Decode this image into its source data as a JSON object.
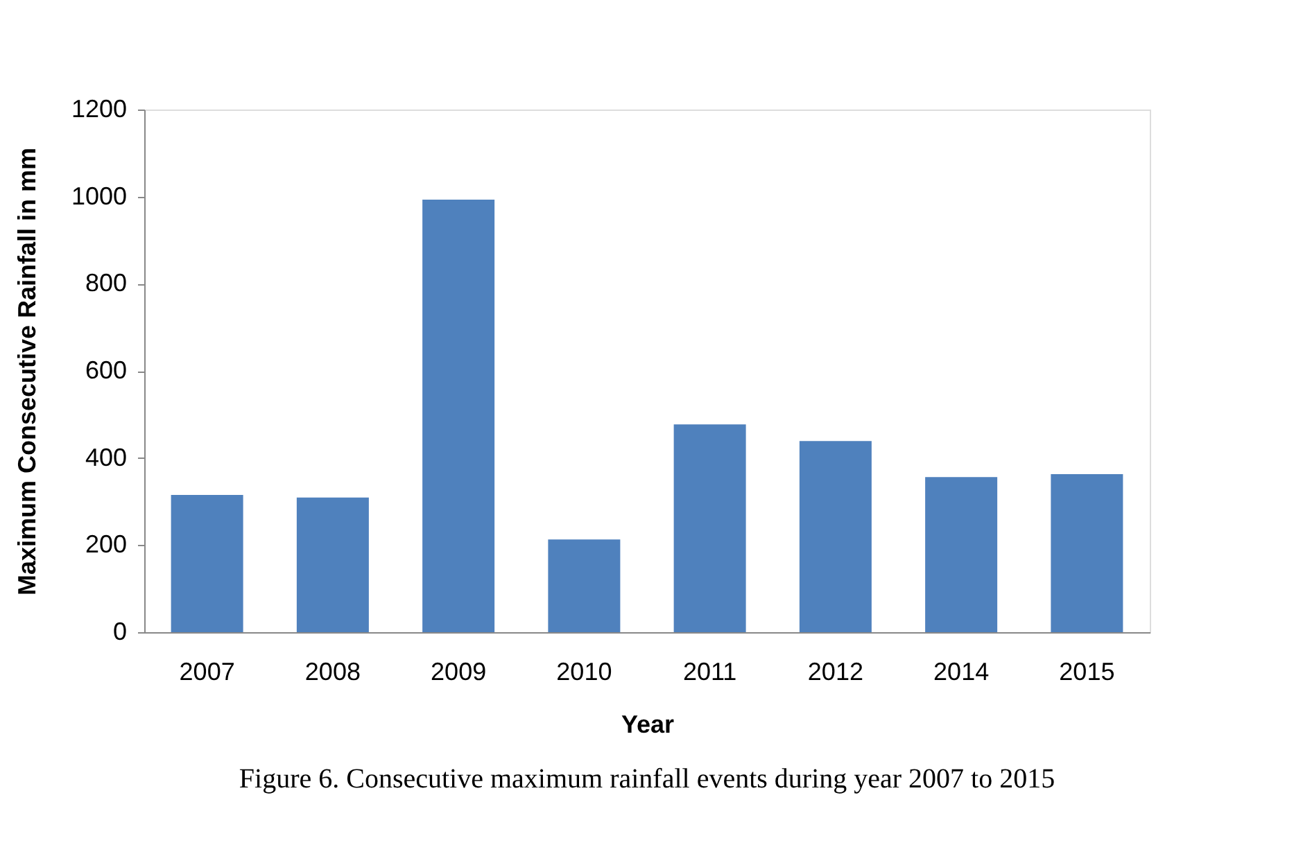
{
  "chart_data": {
    "type": "bar",
    "xlabel": "Year",
    "ylabel": "Maximum Consecutive  Rainfall  in mm",
    "categories": [
      "2007",
      "2008",
      "2009",
      "2010",
      "2011",
      "2012",
      "2014",
      "2015"
    ],
    "values": [
      315,
      309,
      993,
      213,
      477,
      439,
      356,
      363
    ],
    "color": "#4f81bd",
    "ylim": [
      0,
      1200
    ],
    "yticks": [
      0,
      200,
      400,
      600,
      800,
      1000,
      1200
    ],
    "grid": false,
    "annotations": [
      "Figure 6. Consecutive maximum rainfall events during year 2007 to 2015"
    ]
  }
}
